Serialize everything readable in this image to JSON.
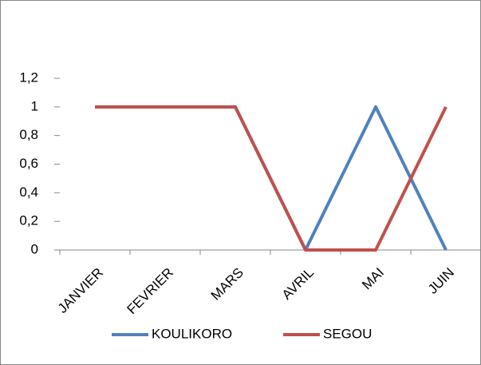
{
  "chart_data": {
    "type": "line",
    "categories": [
      "JANVIER",
      "FEVRIER",
      "MARS",
      "AVRIL",
      "MAI",
      "JUIN"
    ],
    "series": [
      {
        "name": "KOULIKORO",
        "color": "#4f81bd",
        "values": [
          1,
          1,
          1,
          0,
          1,
          0
        ]
      },
      {
        "name": "SEGOU",
        "color": "#c0504d",
        "values": [
          1,
          1,
          1,
          0,
          0,
          1
        ]
      }
    ],
    "ylim": [
      0,
      1.2
    ],
    "yticks": [
      0,
      {
        "value": 0.2,
        "label": "0,2"
      },
      {
        "value": 0.4,
        "label": "0,4"
      },
      {
        "value": 0.6,
        "label": "0,6"
      },
      {
        "value": 0.8,
        "label": "0,8"
      },
      1,
      {
        "value": 1.2,
        "label": "1,2"
      }
    ],
    "legend": "bottom"
  }
}
